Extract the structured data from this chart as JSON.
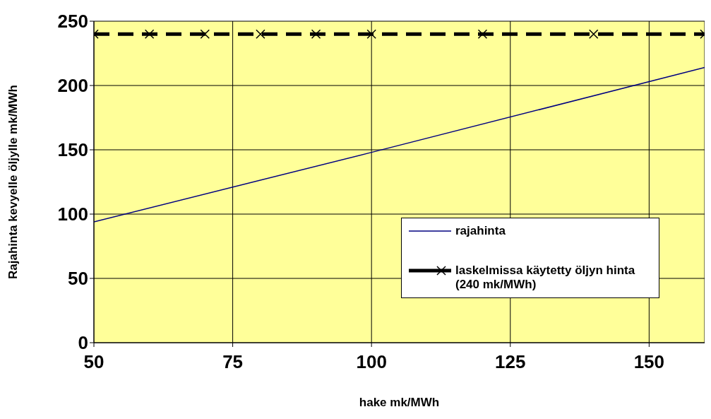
{
  "chart_data": {
    "type": "line",
    "xlabel": "hake mk/MWh",
    "ylabel": "Rajahinta  kevyelle öljylle mk/MWh",
    "xlim": [
      50,
      160
    ],
    "xticks": [
      50,
      75,
      100,
      125,
      150
    ],
    "ylim": [
      0,
      250
    ],
    "yticks": [
      0,
      50,
      100,
      150,
      200,
      250
    ],
    "grid": true,
    "legend": "bottom right",
    "series": [
      {
        "name": "rajahinta",
        "color": "#000080",
        "x": [
          50,
          100,
          160
        ],
        "values": [
          94,
          148,
          214
        ],
        "marker": "none",
        "line_style": "solid"
      },
      {
        "name": "laskelmissa käytetty öljyn hinta (240 mk/MWh)",
        "color": "#000000",
        "x": [
          50,
          60,
          70,
          80,
          90,
          100,
          120,
          140,
          160
        ],
        "values": [
          240,
          240,
          240,
          240,
          240,
          240,
          240,
          240,
          240
        ],
        "marker": "cross",
        "line_style": "dashed"
      }
    ]
  }
}
